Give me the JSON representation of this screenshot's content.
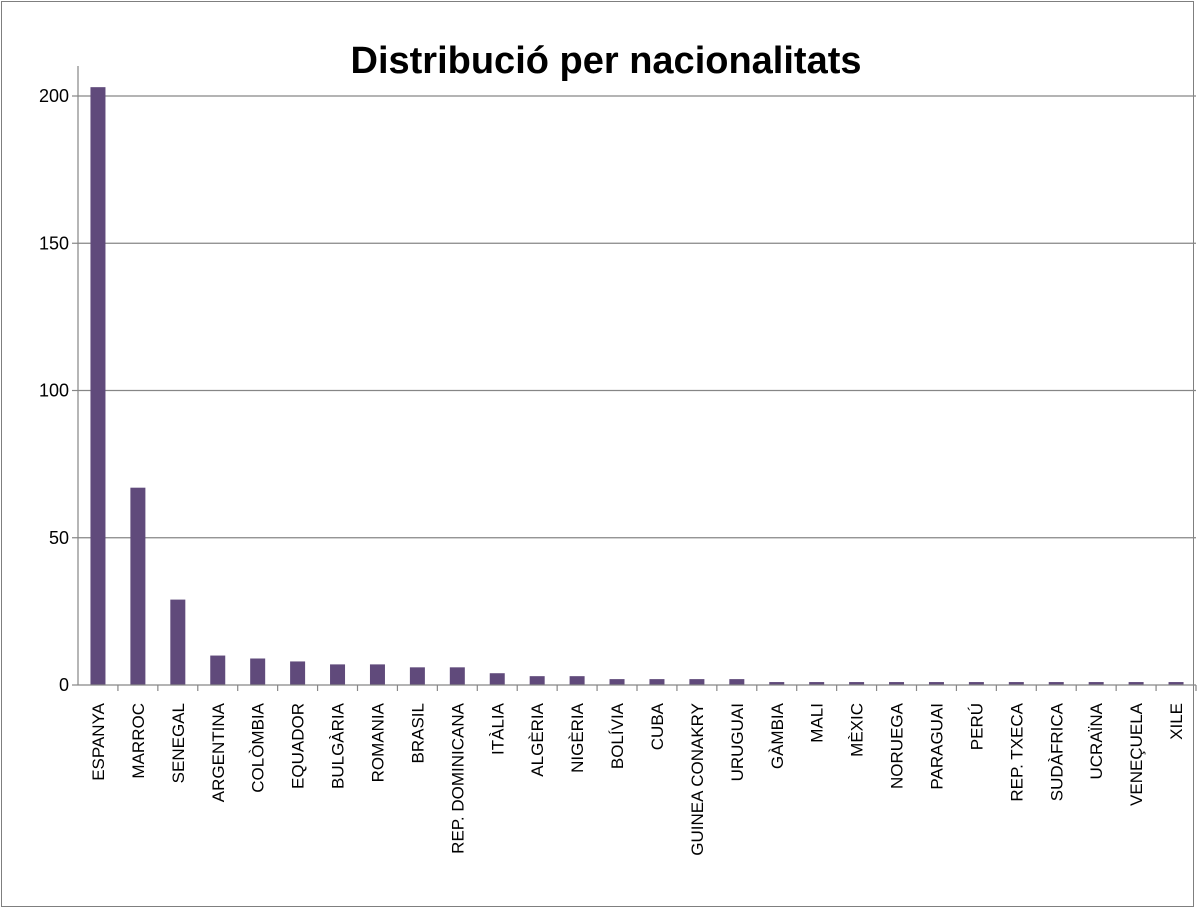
{
  "chart_data": {
    "type": "bar",
    "title": "Distribució per nacionalitats",
    "xlabel": "",
    "ylabel": "",
    "ylim": [
      0,
      210
    ],
    "yticks": [
      0,
      50,
      100,
      150,
      200
    ],
    "grid": true,
    "bar_color": "#604a7b",
    "categories": [
      "ESPANYA",
      "MARROC",
      "SENEGAL",
      "ARGENTINA",
      "COLÒMBIA",
      "EQUADOR",
      "BULGÀRIA",
      "ROMANIA",
      "BRASIL",
      "REP. DOMINICANA",
      "ITÀLIA",
      "ALGÈRIA",
      "NIGÈRIA",
      "BOLÍVIA",
      "CUBA",
      "GUINEA CONAKRY",
      "URUGUAI",
      "GÀMBIA",
      "MALI",
      "MÈXIC",
      "NORUEGA",
      "PARAGUAI",
      "PERÚ",
      "REP. TXECA",
      "SUDÀFRICA",
      "UCRAÏNA",
      "VENEÇUELA",
      "XILE"
    ],
    "values": [
      203,
      67,
      29,
      10,
      9,
      8,
      7,
      7,
      6,
      6,
      4,
      3,
      3,
      2,
      2,
      2,
      2,
      1,
      1,
      1,
      1,
      1,
      1,
      1,
      1,
      1,
      1,
      1
    ]
  }
}
